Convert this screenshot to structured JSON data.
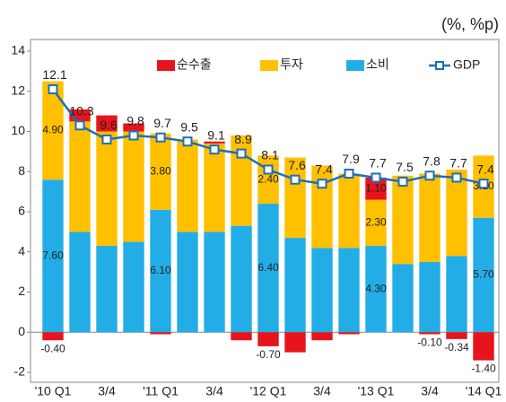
{
  "chart_data": {
    "type": "bar",
    "stacked": true,
    "unit_label": "(%, %p)",
    "categories": [
      "'10 Q1",
      null,
      "3/4",
      null,
      "'11 Q1",
      null,
      "3/4",
      null,
      "'12 Q1",
      null,
      "3/4",
      null,
      "'13 Q1",
      null,
      "3/4",
      null,
      "'14 Q1"
    ],
    "series": [
      {
        "name": "순수출",
        "color": "#e8141c",
        "type": "bar",
        "values": [
          -0.4,
          0.6,
          0.8,
          0.4,
          -0.1,
          0,
          0.1,
          -0.4,
          -0.7,
          -1.0,
          -0.4,
          -0.1,
          1.1,
          0,
          -0.1,
          -0.34,
          -1.4
        ],
        "value_labels": [
          "-0.40",
          null,
          null,
          null,
          null,
          null,
          null,
          null,
          "-0.70",
          null,
          null,
          null,
          "1.10",
          null,
          "-0.10",
          "-0.34",
          "-1.40"
        ]
      },
      {
        "name": "투자",
        "color": "#ffc000",
        "type": "bar",
        "values": [
          4.9,
          5.5,
          5.7,
          5.5,
          3.8,
          4.6,
          4.4,
          4.5,
          2.4,
          4.0,
          4.1,
          3.7,
          2.3,
          4.4,
          4.4,
          4.3,
          3.1
        ],
        "value_labels": [
          "4.90",
          null,
          null,
          null,
          "3.80",
          null,
          null,
          null,
          "2.40",
          null,
          null,
          null,
          "2.30",
          null,
          null,
          null,
          "3.10"
        ]
      },
      {
        "name": "소비",
        "color": "#23ade6",
        "type": "bar",
        "values": [
          7.6,
          5.0,
          4.3,
          4.5,
          6.1,
          5.0,
          5.0,
          5.3,
          6.4,
          4.7,
          4.2,
          4.2,
          4.3,
          3.4,
          3.5,
          3.8,
          5.7
        ],
        "value_labels": [
          "7.60",
          null,
          null,
          null,
          "6.10",
          null,
          null,
          null,
          "6.40",
          null,
          null,
          null,
          "4.30",
          null,
          null,
          null,
          "5.70"
        ]
      },
      {
        "name": "GDP",
        "color": "#1f6fb5",
        "type": "line",
        "values": [
          12.1,
          10.3,
          9.6,
          9.8,
          9.7,
          9.5,
          9.1,
          8.9,
          8.1,
          7.6,
          7.4,
          7.9,
          7.7,
          7.5,
          7.8,
          7.7,
          7.4
        ]
      }
    ],
    "ylim": [
      -2,
      14
    ],
    "yticks": [
      -2,
      0,
      2,
      4,
      6,
      8,
      10,
      12,
      14
    ],
    "grid": false,
    "legend": "top"
  }
}
